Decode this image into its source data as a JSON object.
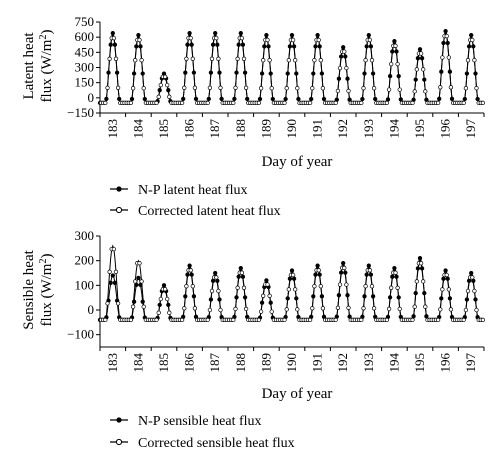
{
  "chart_data": [
    {
      "type": "line",
      "ylabel": "Latent heat flux (W/m²)",
      "ylabel_line1": "Latent heat",
      "ylabel_line2_prefix": "flux (W/m",
      "ylabel_line2_sup": "2",
      "ylabel_line2_suffix": ")",
      "xlabel": "Day of year",
      "xlim": [
        182.5,
        197.5
      ],
      "ylim": [
        -150,
        750
      ],
      "yticks": [
        -150,
        0,
        150,
        300,
        450,
        600,
        750
      ],
      "ytick_labels": [
        "−150",
        "0",
        "150",
        "300",
        "450",
        "600",
        "750"
      ],
      "xticks": [
        183,
        184,
        185,
        186,
        187,
        188,
        189,
        190,
        191,
        192,
        193,
        194,
        195,
        196,
        197
      ],
      "xtick_labels": [
        "183",
        "184",
        "185",
        "186",
        "187",
        "188",
        "189",
        "190",
        "191",
        "192",
        "193",
        "194",
        "195",
        "196",
        "197"
      ],
      "daily_peak_values": {
        "183": [
          640,
          620
        ],
        "184": [
          620,
          600
        ],
        "185": [
          240,
          220
        ],
        "186": [
          640,
          620
        ],
        "187": [
          640,
          620
        ],
        "188": [
          640,
          620
        ],
        "189": [
          620,
          600
        ],
        "190": [
          620,
          600
        ],
        "191": [
          620,
          600
        ],
        "192": [
          500,
          480
        ],
        "193": [
          620,
          600
        ],
        "194": [
          560,
          540
        ],
        "195": [
          480,
          460
        ],
        "196": [
          660,
          640
        ],
        "197": [
          620,
          600
        ]
      },
      "daily_min_value": -50,
      "series": [
        {
          "name": "N-P latent heat flux",
          "marker": "filled"
        },
        {
          "name": "Corrected latent heat flux",
          "marker": "open"
        }
      ],
      "grid": false,
      "legend_position": "bottom"
    },
    {
      "type": "line",
      "ylabel": "Sensible heat flux (W/m²)",
      "ylabel_line1": "Sensible heat",
      "ylabel_line2_prefix": "flux (W/m",
      "ylabel_line2_sup": "2",
      "ylabel_line2_suffix": ")",
      "xlabel": "Day of year",
      "xlim": [
        182.5,
        197.5
      ],
      "ylim": [
        -150,
        300
      ],
      "yticks": [
        -100,
        0,
        100,
        200,
        300
      ],
      "ytick_labels": [
        "−100",
        "0",
        "100",
        "200",
        "300"
      ],
      "xticks": [
        183,
        184,
        185,
        186,
        187,
        188,
        189,
        190,
        191,
        192,
        193,
        194,
        195,
        196,
        197
      ],
      "xtick_labels": [
        "183",
        "184",
        "185",
        "186",
        "187",
        "188",
        "189",
        "190",
        "191",
        "192",
        "193",
        "194",
        "195",
        "196",
        "197"
      ],
      "daily_peak_values": {
        "183": [
          140,
          260
        ],
        "184": [
          130,
          200
        ],
        "185": [
          100,
          90
        ],
        "186": [
          180,
          170
        ],
        "187": [
          150,
          140
        ],
        "188": [
          170,
          160
        ],
        "189": [
          120,
          110
        ],
        "190": [
          160,
          150
        ],
        "191": [
          180,
          170
        ],
        "192": [
          190,
          180
        ],
        "193": [
          180,
          170
        ],
        "194": [
          170,
          160
        ],
        "195": [
          210,
          200
        ],
        "196": [
          160,
          150
        ],
        "197": [
          150,
          140
        ]
      },
      "daily_min_value": -40,
      "series": [
        {
          "name": "N-P sensible heat flux",
          "marker": "filled"
        },
        {
          "name": "Corrected sensible heat flux",
          "marker": "open"
        }
      ],
      "grid": false,
      "legend_position": "bottom"
    }
  ]
}
